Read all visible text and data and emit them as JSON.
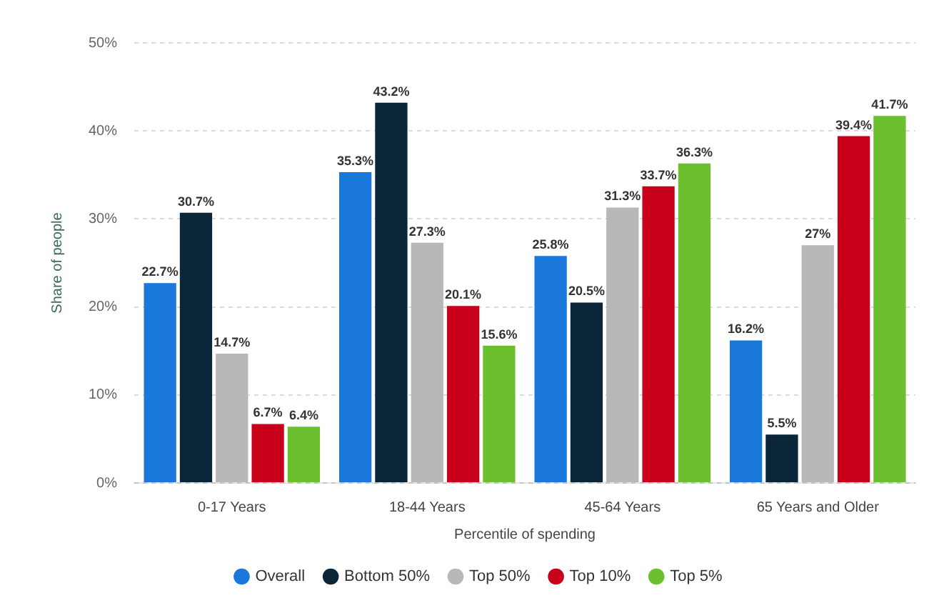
{
  "chart_data": {
    "type": "bar",
    "xlabel": "Percentile of spending",
    "ylabel": "Share of people",
    "categories": [
      "0-17 Years",
      "18-44 Years",
      "45-64 Years",
      "65 Years and Older"
    ],
    "series": [
      {
        "name": "Overall",
        "color": "#1a78dc",
        "values": [
          22.7,
          35.3,
          25.8,
          16.2
        ],
        "value_labels": [
          "22.7%",
          "35.3%",
          "25.8%",
          "16.2%"
        ]
      },
      {
        "name": "Bottom 50%",
        "color": "#0c2639",
        "values": [
          30.7,
          43.2,
          20.5,
          5.5
        ],
        "value_labels": [
          "30.7%",
          "43.2%",
          "20.5%",
          "5.5%"
        ]
      },
      {
        "name": "Top 50%",
        "color": "#b8b8b8",
        "values": [
          14.7,
          27.3,
          31.3,
          27
        ],
        "value_labels": [
          "14.7%",
          "27.3%",
          "31.3%",
          "27%"
        ]
      },
      {
        "name": "Top 10%",
        "color": "#c8001a",
        "values": [
          6.7,
          20.1,
          33.7,
          39.4
        ],
        "value_labels": [
          "6.7%",
          "20.1%",
          "33.7%",
          "39.4%"
        ]
      },
      {
        "name": "Top 5%",
        "color": "#6cbf2f",
        "values": [
          6.4,
          15.6,
          36.3,
          41.7
        ],
        "value_labels": [
          "6.4%",
          "15.6%",
          "36.3%",
          "41.7%"
        ]
      }
    ],
    "ylim": [
      0,
      50
    ],
    "yticks": [
      {
        "value": 0,
        "label": "0%"
      },
      {
        "value": 10,
        "label": "10%"
      },
      {
        "value": 20,
        "label": "20%"
      },
      {
        "value": 30,
        "label": "30%"
      },
      {
        "value": 40,
        "label": "40%"
      },
      {
        "value": 50,
        "label": "50%"
      }
    ],
    "grid": "y",
    "legend": "bottom",
    "marker": "circle"
  }
}
